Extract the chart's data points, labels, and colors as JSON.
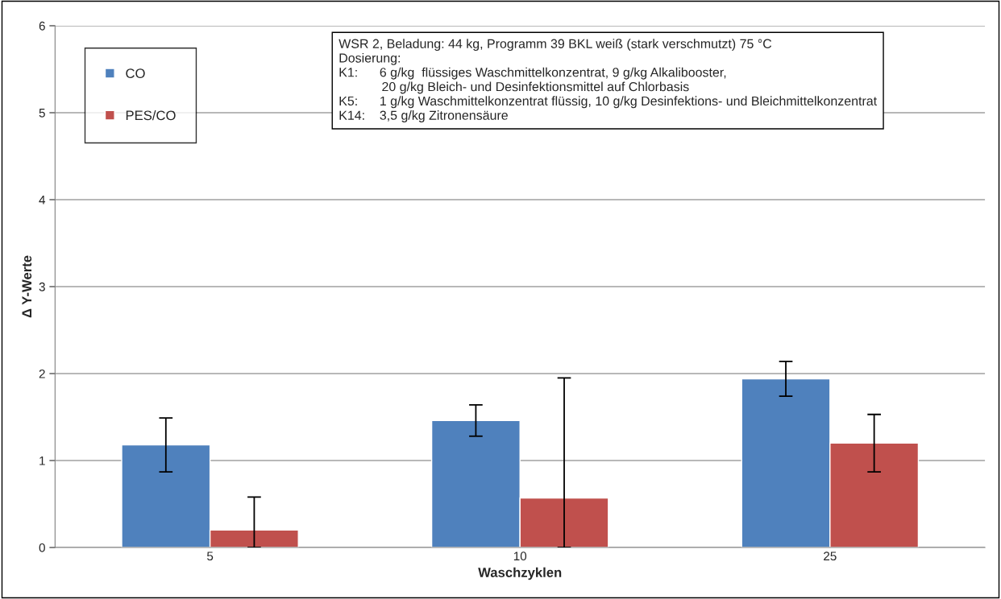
{
  "chart_data": {
    "type": "bar",
    "xlabel": "Waschzyklen",
    "ylabel": "Δ Y-Werte",
    "categories": [
      "5",
      "10",
      "25"
    ],
    "series": [
      {
        "name": "CO",
        "color": "#4f81bd",
        "values": [
          1.18,
          1.46,
          1.94
        ],
        "errors": [
          0.31,
          0.18,
          0.2
        ]
      },
      {
        "name": "PES/CO",
        "color": "#c0504d",
        "values": [
          0.2,
          0.57,
          1.2
        ],
        "errors": [
          [
            0,
            0.58
          ],
          [
            0,
            1.95
          ],
          0.33
        ]
      }
    ],
    "ylim": [
      0,
      6
    ],
    "yticks": [
      0,
      1,
      2,
      3,
      4,
      5,
      6
    ],
    "grid": "y",
    "legend": "top left",
    "annotations": [
      "WSR 2, Beladung: 44 kg, Programm 39 BKL weiß (stark verschmutzt) 75 °C",
      "Dosierung:",
      "K1:      6 g/kg  flüssiges Waschmittelkonzentrat, 9 g/kg Alkalibooster,",
      "            20 g/kg Bleich- und Desinfektionsmittel auf Chlorbasis",
      "K5:      1 g/kg Waschmittelkonzentrat flüssig, 10 g/kg Desinfektions- und Bleichmittelkonzentrat",
      "K14:    3,5 g/kg Zitronensäure"
    ]
  }
}
